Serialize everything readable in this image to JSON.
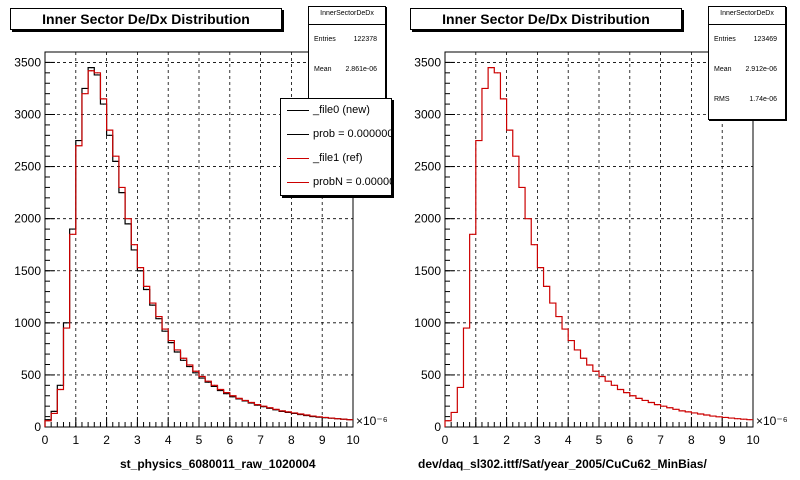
{
  "left_panel": {
    "title": "Inner Sector De/Dx Distribution",
    "stats": {
      "name": "InnerSectorDeDx",
      "rows": [
        {
          "label": "Entries",
          "value": "122378"
        },
        {
          "label": "Mean",
          "value": "2.861e-06"
        }
      ]
    },
    "legend": [
      {
        "label": "_file0 (new)",
        "color": "#000000"
      },
      {
        "label": "prob = 0.000000",
        "color": "#000000"
      },
      {
        "label": "_file1 (ref)",
        "color": "#cc0000"
      },
      {
        "label": "probN = 0.000000",
        "color": "#cc0000"
      }
    ],
    "xcaption": "st_physics_6080011_raw_1020004",
    "exponent": "×10⁻⁶"
  },
  "right_panel": {
    "title": "Inner Sector De/Dx Distribution",
    "stats": {
      "name": "InnerSectorDeDx",
      "rows": [
        {
          "label": "Entries",
          "value": "123469"
        },
        {
          "label": "Mean",
          "value": "2.912e-06"
        },
        {
          "label": "RMS",
          "value": "1.74e-06"
        }
      ]
    },
    "xcaption": "dev/daq_sl302.ittf/Sat/year_2005/CuCu62_MinBias/",
    "exponent": "×10⁻⁶"
  },
  "chart_data": [
    {
      "type": "line",
      "title": "Inner Sector De/Dx Distribution",
      "xlabel": "st_physics_6080011_raw_1020004",
      "ylabel": "",
      "xlim": [
        0,
        10
      ],
      "ylim": [
        0,
        3600
      ],
      "x_ticks": [
        0,
        1,
        2,
        3,
        4,
        5,
        6,
        7,
        8,
        9,
        10
      ],
      "y_ticks": [
        0,
        500,
        1000,
        1500,
        2000,
        2500,
        3000,
        3500
      ],
      "grid": true,
      "x": [
        0.1,
        0.3,
        0.5,
        0.7,
        0.9,
        1.1,
        1.3,
        1.5,
        1.7,
        1.9,
        2.1,
        2.3,
        2.5,
        2.7,
        2.9,
        3.1,
        3.3,
        3.5,
        3.7,
        3.9,
        4.1,
        4.3,
        4.5,
        4.7,
        4.9,
        5.1,
        5.3,
        5.5,
        5.7,
        5.9,
        6.1,
        6.3,
        6.5,
        6.7,
        6.9,
        7.1,
        7.3,
        7.5,
        7.7,
        7.9,
        8.1,
        8.3,
        8.5,
        8.7,
        8.9,
        9.1,
        9.3,
        9.5,
        9.7,
        9.9
      ],
      "series": [
        {
          "name": "_file0 (new)",
          "color": "#000000",
          "values": [
            70,
            150,
            400,
            1000,
            1900,
            2750,
            3250,
            3450,
            3380,
            3100,
            2800,
            2550,
            2250,
            1950,
            1700,
            1500,
            1320,
            1170,
            1040,
            920,
            810,
            720,
            640,
            580,
            520,
            470,
            430,
            390,
            350,
            320,
            290,
            270,
            250,
            230,
            210,
            195,
            180,
            165,
            150,
            140,
            130,
            120,
            110,
            100,
            95,
            90,
            85,
            80,
            75,
            70
          ]
        },
        {
          "name": "_file1 (ref)",
          "color": "#cc0000",
          "values": [
            60,
            130,
            360,
            950,
            1850,
            2700,
            3200,
            3420,
            3400,
            3150,
            2850,
            2600,
            2300,
            2000,
            1750,
            1530,
            1350,
            1190,
            1060,
            940,
            830,
            740,
            660,
            595,
            535,
            485,
            440,
            400,
            360,
            330,
            300,
            275,
            255,
            235,
            215,
            200,
            185,
            170,
            155,
            145,
            135,
            125,
            115,
            105,
            98,
            92,
            86,
            80,
            75,
            70
          ]
        }
      ]
    },
    {
      "type": "line",
      "title": "Inner Sector De/Dx Distribution",
      "xlabel": "dev/daq_sl302.ittf/Sat/year_2005/CuCu62_MinBias/",
      "ylabel": "",
      "xlim": [
        0,
        10
      ],
      "ylim": [
        0,
        3600
      ],
      "x_ticks": [
        0,
        1,
        2,
        3,
        4,
        5,
        6,
        7,
        8,
        9,
        10
      ],
      "y_ticks": [
        0,
        500,
        1000,
        1500,
        2000,
        2500,
        3000,
        3500
      ],
      "grid": true,
      "x": [
        0.1,
        0.3,
        0.5,
        0.7,
        0.9,
        1.1,
        1.3,
        1.5,
        1.7,
        1.9,
        2.1,
        2.3,
        2.5,
        2.7,
        2.9,
        3.1,
        3.3,
        3.5,
        3.7,
        3.9,
        4.1,
        4.3,
        4.5,
        4.7,
        4.9,
        5.1,
        5.3,
        5.5,
        5.7,
        5.9,
        6.1,
        6.3,
        6.5,
        6.7,
        6.9,
        7.1,
        7.3,
        7.5,
        7.7,
        7.9,
        8.1,
        8.3,
        8.5,
        8.7,
        8.9,
        9.1,
        9.3,
        9.5,
        9.7,
        9.9
      ],
      "series": [
        {
          "name": "",
          "color": "#cc0000",
          "values": [
            60,
            140,
            380,
            950,
            1850,
            2750,
            3250,
            3450,
            3400,
            3150,
            2850,
            2600,
            2300,
            2000,
            1750,
            1530,
            1350,
            1190,
            1060,
            940,
            830,
            740,
            660,
            595,
            535,
            485,
            440,
            400,
            360,
            330,
            300,
            275,
            255,
            235,
            215,
            200,
            185,
            170,
            155,
            145,
            135,
            125,
            115,
            105,
            98,
            92,
            86,
            80,
            75,
            70
          ]
        }
      ]
    }
  ]
}
